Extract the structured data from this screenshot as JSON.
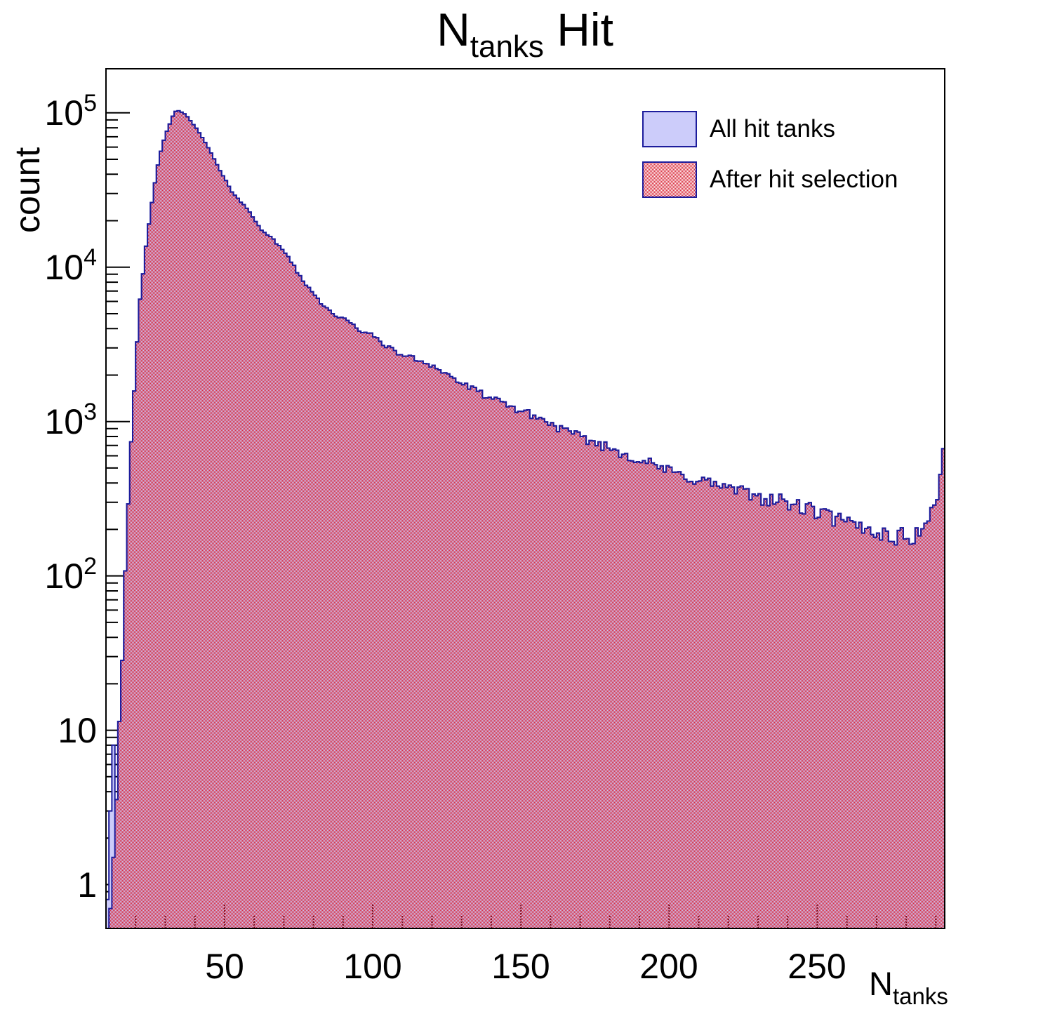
{
  "title": {
    "main": "N",
    "sub": "tanks",
    "rest": " Hit"
  },
  "y_axis": {
    "title": "count",
    "scale": "log",
    "tick_labels": [
      {
        "value": 1,
        "base": "1",
        "exp": ""
      },
      {
        "value": 10,
        "base": "10",
        "exp": ""
      },
      {
        "value": 100,
        "base": "10",
        "exp": "2"
      },
      {
        "value": 1000,
        "base": "10",
        "exp": "3"
      },
      {
        "value": 10000,
        "base": "10",
        "exp": "4"
      },
      {
        "value": 100000,
        "base": "10",
        "exp": "5"
      }
    ]
  },
  "x_axis": {
    "title_main": "N",
    "title_sub": "tanks",
    "major_ticks": [
      50,
      100,
      150,
      200,
      250
    ],
    "minor_tick_step": 10
  },
  "legend": {
    "entries": [
      {
        "label": "All hit tanks",
        "pattern": "solid",
        "fill": "#ccccfa",
        "border": "#1c1c9c"
      },
      {
        "label": "After hit selection",
        "pattern": "checker",
        "fill": "#d92738",
        "border": "#1c1c9c"
      }
    ]
  },
  "colors": {
    "frame": "#000000",
    "hist_line": "#1c1c9c",
    "hist_fill_all": "#ccccfa",
    "hatch_red": "#d92738",
    "ticks_through_fill": "#7a1022",
    "background": "#ffffff"
  },
  "chart_data": {
    "type": "bar",
    "subtype": "step-histogram-log",
    "title": "N_tanks Hit",
    "xlabel": "N_tanks",
    "ylabel": "count",
    "log_y": true,
    "xlim": [
      10,
      293
    ],
    "ylim": [
      0.52,
      193000
    ],
    "bin_width": 1,
    "legend_position": "top-right",
    "grid": false,
    "peak": {
      "x": 33,
      "count": 102500
    },
    "last_bin_spike": {
      "x": 292,
      "count": 640
    },
    "profile_anchors": [
      [
        10,
        0.55
      ],
      [
        11,
        0.8
      ],
      [
        12,
        1.5
      ],
      [
        13,
        4
      ],
      [
        14,
        12
      ],
      [
        15,
        35
      ],
      [
        16,
        110
      ],
      [
        17,
        320
      ],
      [
        18,
        700
      ],
      [
        19,
        1500
      ],
      [
        20,
        3200
      ],
      [
        21,
        6200
      ],
      [
        22,
        9000
      ],
      [
        23,
        13500
      ],
      [
        24,
        19000
      ],
      [
        25,
        26500
      ],
      [
        26,
        35500
      ],
      [
        27,
        45500
      ],
      [
        28,
        56000
      ],
      [
        29,
        66000
      ],
      [
        30,
        76000
      ],
      [
        31,
        85000
      ],
      [
        32,
        95000
      ],
      [
        33,
        102500
      ],
      [
        34,
        102500
      ],
      [
        35,
        100500
      ],
      [
        36,
        99000
      ],
      [
        40,
        80000
      ],
      [
        45,
        55000
      ],
      [
        48,
        42000
      ],
      [
        52,
        31000
      ],
      [
        57,
        24000
      ],
      [
        62,
        17600
      ],
      [
        66,
        15000
      ],
      [
        71,
        11800
      ],
      [
        76,
        8000
      ],
      [
        80,
        6700
      ],
      [
        82,
        5900
      ],
      [
        86,
        5000
      ],
      [
        90,
        4570
      ],
      [
        95,
        3940
      ],
      [
        100,
        3550
      ],
      [
        107,
        2820
      ],
      [
        119,
        2350
      ],
      [
        131,
        1700
      ],
      [
        142,
        1340
      ],
      [
        154,
        1090
      ],
      [
        166,
        840
      ],
      [
        178,
        690
      ],
      [
        190,
        562
      ],
      [
        202,
        457
      ],
      [
        214,
        398
      ],
      [
        226,
        339
      ],
      [
        238,
        302
      ],
      [
        250,
        257
      ],
      [
        262,
        209
      ],
      [
        268,
        200
      ],
      [
        274,
        182
      ],
      [
        280,
        178
      ],
      [
        283,
        186
      ],
      [
        285,
        205
      ],
      [
        286,
        214
      ],
      [
        287,
        235
      ],
      [
        288,
        263
      ],
      [
        289,
        302
      ],
      [
        290,
        331
      ],
      [
        291,
        417
      ],
      [
        292,
        640
      ]
    ],
    "series": [
      {
        "name": "All hit tanks",
        "overrides": {
          "10": 0.8,
          "11": 3,
          "12": 8
        }
      },
      {
        "name": "After hit selection",
        "overrides": {
          "10": 0,
          "11": 0.7,
          "12": 1.5
        }
      }
    ],
    "jitter": {
      "seed": 42,
      "coef": 2.0,
      "max": 0.2
    }
  }
}
